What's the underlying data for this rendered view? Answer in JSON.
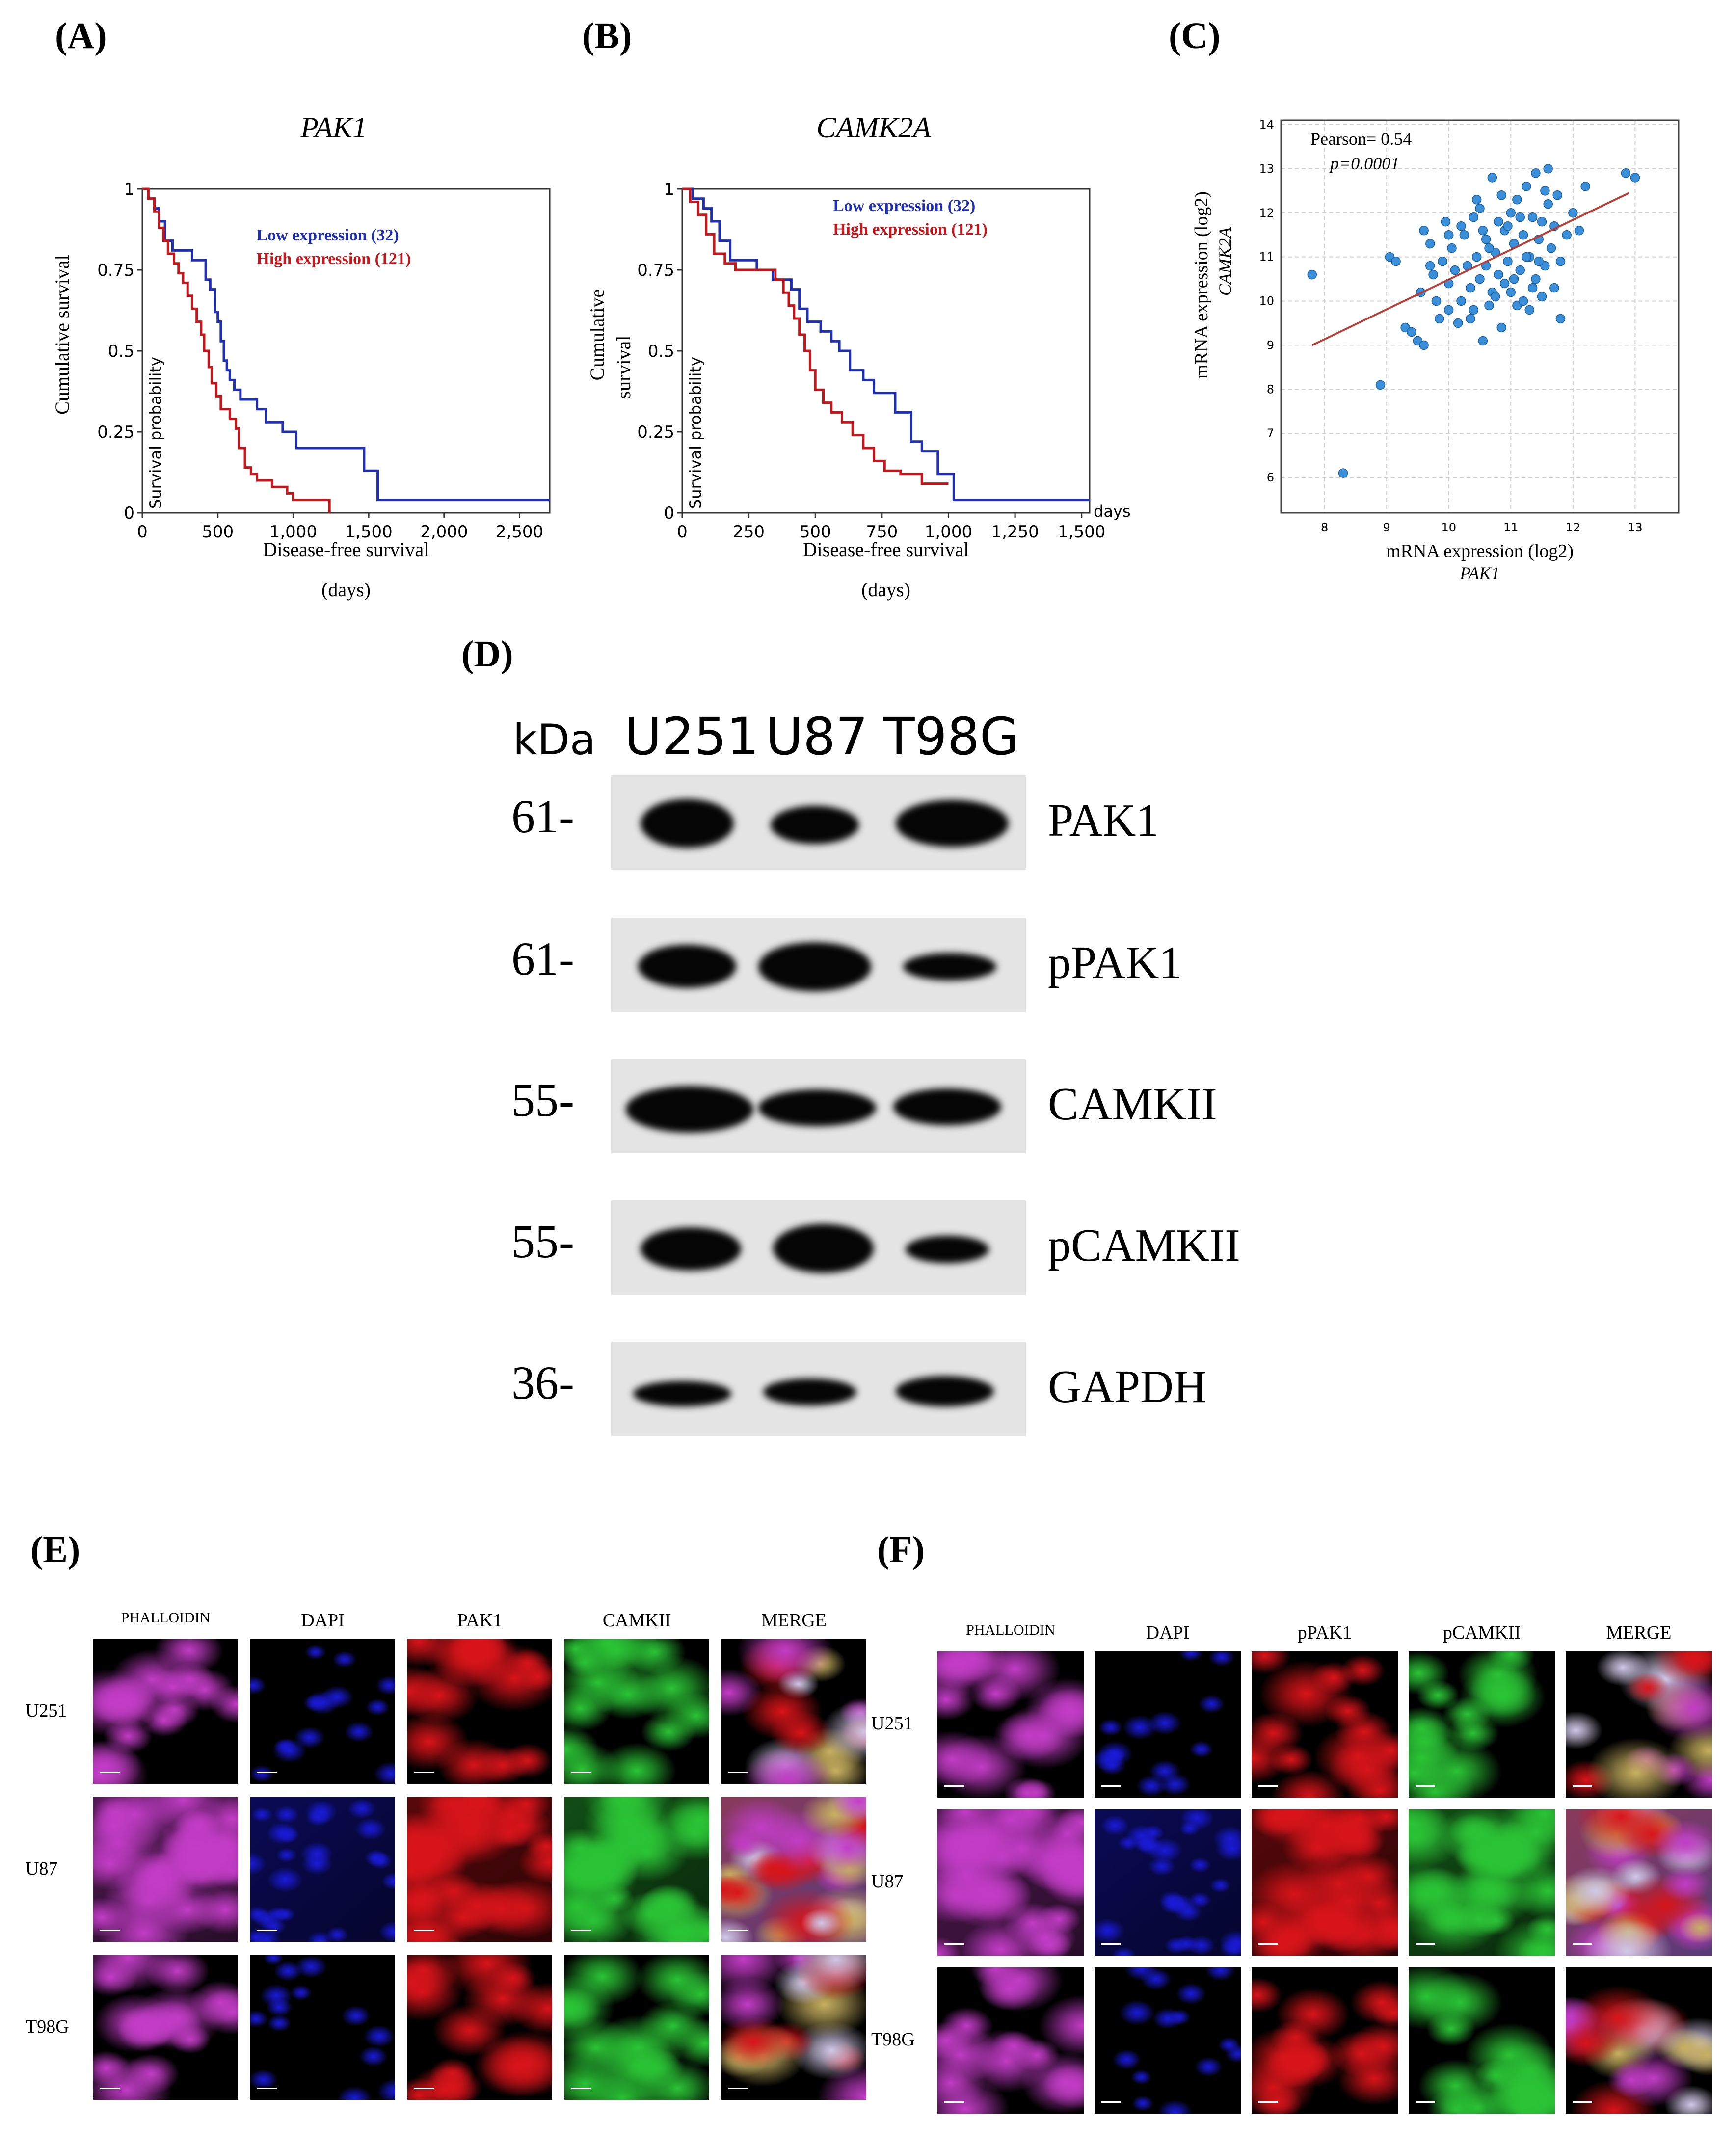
{
  "panels": {
    "A": "(A)",
    "B": "(B)",
    "C": "(C)",
    "D": "(D)",
    "E": "(E)",
    "F": "(F)"
  },
  "chart_data": [
    {
      "id": "A",
      "type": "line",
      "title": "PAK1",
      "xlabel": "Disease-free survival",
      "xlabel2": "(days)",
      "ylabel": "Cumulative survival",
      "ylabel_inner": "Survival probability",
      "xlim": [
        0,
        2700
      ],
      "ylim": [
        0,
        1
      ],
      "xticks": [
        0,
        500,
        1000,
        1500,
        2000,
        2500
      ],
      "xtick_labels": [
        "0",
        "500",
        "1,000",
        "1,500",
        "2,000",
        "2,500"
      ],
      "yticks": [
        0,
        0.25,
        0.5,
        0.75,
        1
      ],
      "ytick_labels": [
        "0",
        "0.25",
        "0.5",
        "0.75",
        "1"
      ],
      "legend_position": "top-right",
      "series": [
        {
          "name": "Low expression (32)",
          "color": "#1f2fb0",
          "points": [
            [
              0,
              1
            ],
            [
              40,
              0.97
            ],
            [
              80,
              0.94
            ],
            [
              110,
              0.9
            ],
            [
              150,
              0.84
            ],
            [
              200,
              0.81
            ],
            [
              300,
              0.81
            ],
            [
              330,
              0.78
            ],
            [
              380,
              0.78
            ],
            [
              420,
              0.72
            ],
            [
              450,
              0.69
            ],
            [
              480,
              0.62
            ],
            [
              500,
              0.59
            ],
            [
              520,
              0.53
            ],
            [
              540,
              0.47
            ],
            [
              560,
              0.44
            ],
            [
              580,
              0.41
            ],
            [
              610,
              0.38
            ],
            [
              650,
              0.35
            ],
            [
              760,
              0.32
            ],
            [
              820,
              0.28
            ],
            [
              930,
              0.25
            ],
            [
              1020,
              0.2
            ],
            [
              1100,
              0.2
            ],
            [
              1440,
              0.2
            ],
            [
              1470,
              0.13
            ],
            [
              1560,
              0.04
            ],
            [
              2700,
              0.04
            ]
          ]
        },
        {
          "name": "High expression (121)",
          "color": "#c0181c",
          "points": [
            [
              0,
              1
            ],
            [
              40,
              0.97
            ],
            [
              80,
              0.93
            ],
            [
              110,
              0.88
            ],
            [
              140,
              0.84
            ],
            [
              170,
              0.8
            ],
            [
              210,
              0.77
            ],
            [
              240,
              0.74
            ],
            [
              270,
              0.71
            ],
            [
              300,
              0.67
            ],
            [
              330,
              0.63
            ],
            [
              360,
              0.59
            ],
            [
              390,
              0.55
            ],
            [
              410,
              0.5
            ],
            [
              440,
              0.45
            ],
            [
              460,
              0.4
            ],
            [
              490,
              0.36
            ],
            [
              520,
              0.32
            ],
            [
              580,
              0.29
            ],
            [
              620,
              0.26
            ],
            [
              640,
              0.2
            ],
            [
              680,
              0.14
            ],
            [
              720,
              0.12
            ],
            [
              760,
              0.1
            ],
            [
              860,
              0.08
            ],
            [
              960,
              0.06
            ],
            [
              1000,
              0.04
            ],
            [
              1240,
              0.04
            ],
            [
              1240,
              0
            ]
          ]
        }
      ]
    },
    {
      "id": "B",
      "type": "line",
      "title": "CAMK2A",
      "xlabel": "Disease-free survival",
      "xlabel2": "(days)",
      "ylabel": "Cumulative",
      "ylabel2": "survival",
      "ylabel_inner": "Survival probability",
      "xunit": "days",
      "xlim": [
        0,
        1530
      ],
      "ylim": [
        0,
        1
      ],
      "xticks": [
        0,
        250,
        500,
        750,
        1000,
        1250,
        1500
      ],
      "xtick_labels": [
        "0",
        "250",
        "500",
        "750",
        "1,000",
        "1,250",
        "1,500"
      ],
      "yticks": [
        0,
        0.25,
        0.5,
        0.75,
        1
      ],
      "ytick_labels": [
        "0",
        "0.25",
        "0.5",
        "0.75",
        "1"
      ],
      "legend_position": "top-right",
      "series": [
        {
          "name": "Low expression (32)",
          "color": "#1f2fb0",
          "points": [
            [
              0,
              1
            ],
            [
              20,
              1
            ],
            [
              40,
              0.97
            ],
            [
              80,
              0.94
            ],
            [
              110,
              0.9
            ],
            [
              140,
              0.84
            ],
            [
              180,
              0.78
            ],
            [
              250,
              0.78
            ],
            [
              280,
              0.75
            ],
            [
              320,
              0.75
            ],
            [
              340,
              0.72
            ],
            [
              380,
              0.72
            ],
            [
              410,
              0.69
            ],
            [
              440,
              0.63
            ],
            [
              470,
              0.59
            ],
            [
              520,
              0.56
            ],
            [
              560,
              0.53
            ],
            [
              590,
              0.5
            ],
            [
              630,
              0.44
            ],
            [
              680,
              0.41
            ],
            [
              720,
              0.37
            ],
            [
              800,
              0.31
            ],
            [
              860,
              0.22
            ],
            [
              900,
              0.19
            ],
            [
              960,
              0.12
            ],
            [
              1020,
              0.04
            ],
            [
              1530,
              0.04
            ]
          ]
        },
        {
          "name": "High expression (121)",
          "color": "#c0181c",
          "points": [
            [
              0,
              1
            ],
            [
              30,
              0.96
            ],
            [
              60,
              0.92
            ],
            [
              90,
              0.86
            ],
            [
              120,
              0.8
            ],
            [
              160,
              0.77
            ],
            [
              200,
              0.75
            ],
            [
              300,
              0.75
            ],
            [
              350,
              0.72
            ],
            [
              380,
              0.68
            ],
            [
              400,
              0.64
            ],
            [
              420,
              0.6
            ],
            [
              440,
              0.55
            ],
            [
              460,
              0.5
            ],
            [
              480,
              0.44
            ],
            [
              500,
              0.38
            ],
            [
              530,
              0.34
            ],
            [
              560,
              0.31
            ],
            [
              600,
              0.28
            ],
            [
              640,
              0.24
            ],
            [
              680,
              0.2
            ],
            [
              720,
              0.16
            ],
            [
              760,
              0.13
            ],
            [
              820,
              0.12
            ],
            [
              900,
              0.09
            ],
            [
              1000,
              0.09
            ]
          ]
        }
      ]
    },
    {
      "id": "C",
      "type": "scatter",
      "xlabel": "mRNA expression (log2)",
      "xlabel2": "PAK1",
      "ylabel": "mRNA expression (log2)",
      "ylabel2": "CAMK2A",
      "annotation1": "Pearson= 0.54",
      "annotation2": "p=0.0001",
      "xlim": [
        7.3,
        13.7
      ],
      "ylim": [
        5.2,
        14.1
      ],
      "xticks": [
        8,
        9,
        10,
        11,
        12,
        13
      ],
      "yticks": [
        6,
        7,
        8,
        9,
        10,
        11,
        12,
        13,
        14
      ],
      "grid": true,
      "point_color": "#3a8fd8",
      "line_color": "#b5413a",
      "fit_line": [
        [
          7.8,
          9.0
        ],
        [
          12.9,
          12.45
        ]
      ],
      "points": [
        [
          8.3,
          6.1
        ],
        [
          8.9,
          8.1
        ],
        [
          7.8,
          10.6
        ],
        [
          9.05,
          11.0
        ],
        [
          9.15,
          10.9
        ],
        [
          9.3,
          9.4
        ],
        [
          9.4,
          9.3
        ],
        [
          9.5,
          9.1
        ],
        [
          9.6,
          9.0
        ],
        [
          9.55,
          10.2
        ],
        [
          9.6,
          11.6
        ],
        [
          9.7,
          11.3
        ],
        [
          9.75,
          10.6
        ],
        [
          9.8,
          10.0
        ],
        [
          9.85,
          9.6
        ],
        [
          9.9,
          10.9
        ],
        [
          9.95,
          11.8
        ],
        [
          10.0,
          9.8
        ],
        [
          10.0,
          10.4
        ],
        [
          10.05,
          11.2
        ],
        [
          10.1,
          10.7
        ],
        [
          10.15,
          9.5
        ],
        [
          10.2,
          10.0
        ],
        [
          10.25,
          11.5
        ],
        [
          10.3,
          10.8
        ],
        [
          10.35,
          10.3
        ],
        [
          10.4,
          11.9
        ],
        [
          10.4,
          9.8
        ],
        [
          10.45,
          11.0
        ],
        [
          10.5,
          10.5
        ],
        [
          10.5,
          12.1
        ],
        [
          10.55,
          9.1
        ],
        [
          10.6,
          10.8
        ],
        [
          10.6,
          11.4
        ],
        [
          10.65,
          9.9
        ],
        [
          10.7,
          10.2
        ],
        [
          10.7,
          12.8
        ],
        [
          10.75,
          11.1
        ],
        [
          10.8,
          10.6
        ],
        [
          10.8,
          11.8
        ],
        [
          10.85,
          9.4
        ],
        [
          10.9,
          10.4
        ],
        [
          10.9,
          11.6
        ],
        [
          10.95,
          10.9
        ],
        [
          11.0,
          12.0
        ],
        [
          11.0,
          10.2
        ],
        [
          11.05,
          11.3
        ],
        [
          11.1,
          9.9
        ],
        [
          11.1,
          12.3
        ],
        [
          11.15,
          10.7
        ],
        [
          11.2,
          11.5
        ],
        [
          11.2,
          10.0
        ],
        [
          11.25,
          12.6
        ],
        [
          11.3,
          11.0
        ],
        [
          11.3,
          9.8
        ],
        [
          11.35,
          11.9
        ],
        [
          11.4,
          10.5
        ],
        [
          11.4,
          12.9
        ],
        [
          11.45,
          11.4
        ],
        [
          11.5,
          10.1
        ],
        [
          11.5,
          11.8
        ],
        [
          11.55,
          10.8
        ],
        [
          11.6,
          12.2
        ],
        [
          11.6,
          13.0
        ],
        [
          11.65,
          11.2
        ],
        [
          11.7,
          10.3
        ],
        [
          11.7,
          11.7
        ],
        [
          11.75,
          12.4
        ],
        [
          11.8,
          9.6
        ],
        [
          11.8,
          10.9
        ],
        [
          11.9,
          11.5
        ],
        [
          12.0,
          12.0
        ],
        [
          12.1,
          11.6
        ],
        [
          12.2,
          12.6
        ],
        [
          12.85,
          12.9
        ],
        [
          13.0,
          12.8
        ],
        [
          10.2,
          11.7
        ],
        [
          10.55,
          11.6
        ],
        [
          10.35,
          9.6
        ],
        [
          10.85,
          12.4
        ],
        [
          11.15,
          11.9
        ],
        [
          9.7,
          10.8
        ],
        [
          10.0,
          11.5
        ],
        [
          10.75,
          10.1
        ],
        [
          11.05,
          10.5
        ],
        [
          11.35,
          10.3
        ],
        [
          11.55,
          12.5
        ],
        [
          10.95,
          11.7
        ],
        [
          10.45,
          12.3
        ],
        [
          11.25,
          11.0
        ],
        [
          10.65,
          11.2
        ],
        [
          11.45,
          10.9
        ]
      ]
    }
  ],
  "western": {
    "unit": "kDa",
    "lanes": [
      "U251",
      "U87",
      "T98G"
    ],
    "rows": [
      {
        "kda": "61-",
        "protein": "PAK1"
      },
      {
        "kda": "61-",
        "protein": "pPAK1"
      },
      {
        "kda": "55-",
        "protein": "CAMKII"
      },
      {
        "kda": "55-",
        "protein": "pCAMKII"
      },
      {
        "kda": "36-",
        "protein": "GAPDH"
      }
    ]
  },
  "panelE": {
    "stains": [
      "PHALLOIDIN",
      "DAPI",
      "PAK1",
      "CAMKII",
      "MERGE"
    ],
    "rows": [
      "U251",
      "U87",
      "T98G"
    ]
  },
  "panelF": {
    "stains": [
      "PHALLOIDIN",
      "DAPI",
      "pPAK1",
      "pCAMKII",
      "MERGE"
    ],
    "rows": [
      "U251",
      "U87",
      "T98G"
    ]
  },
  "colors": {
    "phalloidin": "#c23cc6",
    "dapi": "#1a1ad8",
    "red": "#d8141a",
    "green": "#2bc436"
  }
}
